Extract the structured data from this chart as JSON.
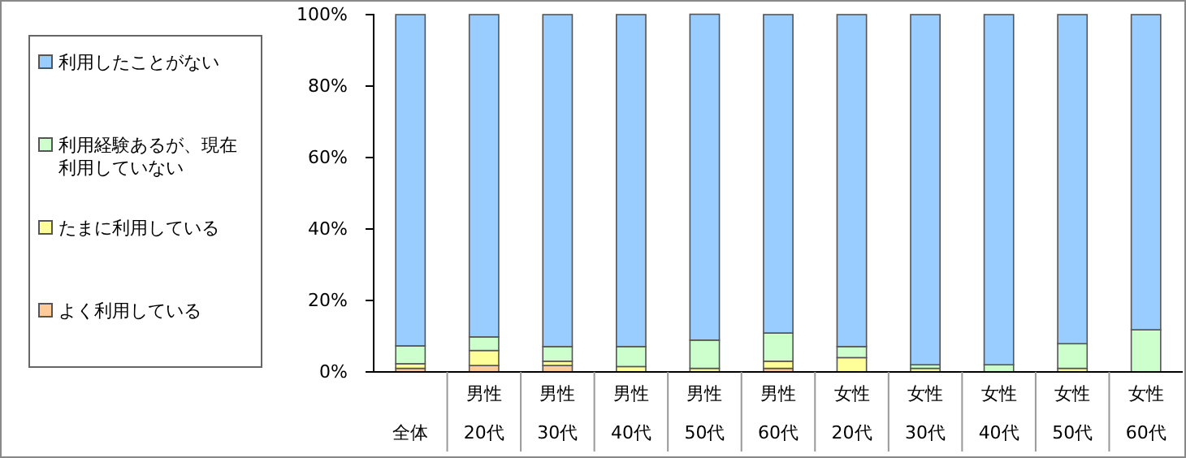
{
  "chart_data": {
    "type": "bar",
    "stacked": true,
    "legend": "left",
    "categories": [
      "全体",
      "男性\n20代",
      "男性\n30代",
      "男性\n40代",
      "男性\n50代",
      "男性\n60代",
      "女性\n20代",
      "女性\n30代",
      "女性\n40代",
      "女性\n50代",
      "女性\n60代"
    ],
    "ylim": [
      0,
      100
    ],
    "yticks": [
      {
        "value": 0,
        "label": "0%"
      },
      {
        "value": 20,
        "label": "20%"
      },
      {
        "value": 40,
        "label": "40%"
      },
      {
        "value": 60,
        "label": "60%"
      },
      {
        "value": 80,
        "label": "80%"
      },
      {
        "value": 100,
        "label": "100%"
      }
    ],
    "series": [
      {
        "name": "よく利用している",
        "color": "#ffcc99",
        "values": [
          1,
          1.8,
          1.8,
          null,
          0,
          1,
          null,
          0,
          0,
          0,
          0
        ]
      },
      {
        "name": "たまに利用している",
        "color": "#ffff99",
        "values": [
          1.3,
          4.2,
          1.2,
          1.5,
          1,
          2,
          4,
          1,
          0,
          1,
          0
        ]
      },
      {
        "name": "利用経験あるが、現在利用していない",
        "color": "#ccffcc",
        "values": [
          5,
          3.8,
          4.1,
          5.6,
          7.9,
          7.9,
          3.1,
          1,
          2,
          6.9,
          11.8
        ]
      },
      {
        "name": "利用したことがない",
        "color": "#99ccff",
        "values": [
          92.7,
          90.2,
          92.9,
          92.9,
          91.2,
          89.1,
          92.9,
          98,
          98,
          92.1,
          88.2
        ]
      }
    ]
  }
}
